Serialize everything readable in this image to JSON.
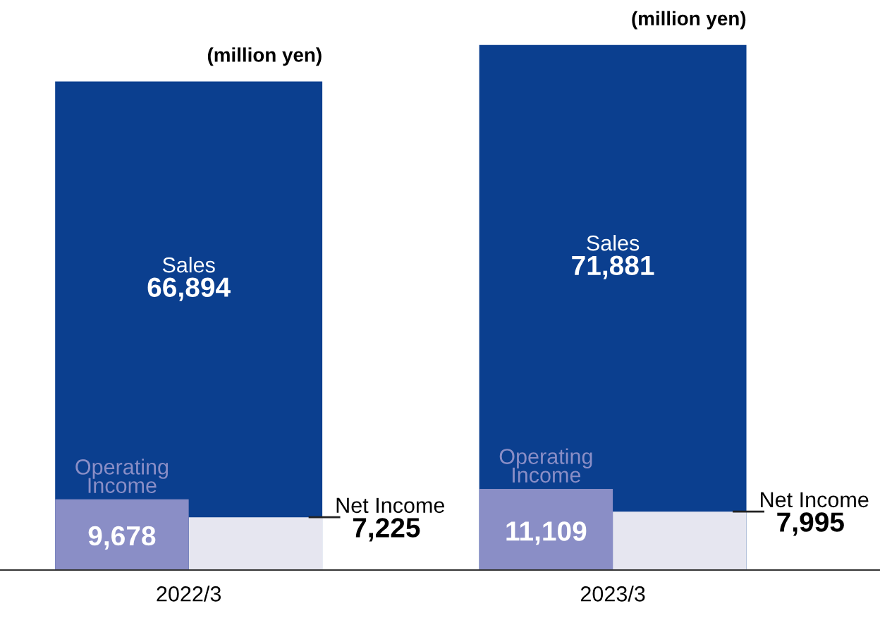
{
  "chart_data": {
    "type": "bar",
    "categories": [
      "2022/3",
      "2023/3"
    ],
    "series": [
      {
        "name": "Sales",
        "color": "#0b3f8f",
        "values": [
          66894,
          71881
        ],
        "value_labels": [
          "66,894",
          "71,881"
        ]
      },
      {
        "name": "Net Income",
        "color": "#e6e6f0",
        "values": [
          7225,
          7995
        ],
        "value_labels": [
          "7,225",
          "7,995"
        ]
      },
      {
        "name": "Operating Income",
        "color": "#8a8ec6",
        "values": [
          9678,
          11109
        ],
        "value_labels": [
          "9,678",
          "11,109"
        ]
      }
    ],
    "grid": false,
    "legend": false,
    "annotations": [
      "(million yen)",
      "(million yen)"
    ]
  }
}
